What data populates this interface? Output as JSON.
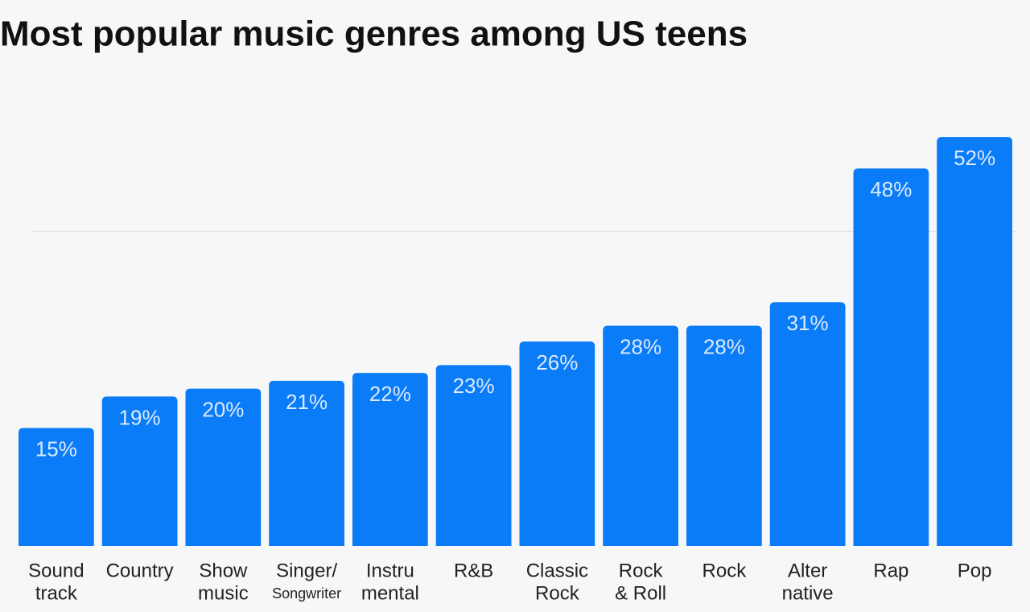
{
  "chart_data": {
    "type": "bar",
    "title": "Most popular music genres among US teens",
    "categories": [
      [
        "Sound",
        "track"
      ],
      [
        "Country"
      ],
      [
        "Show",
        "music"
      ],
      [
        "Singer/",
        "Songwriter"
      ],
      [
        "Instru",
        "mental"
      ],
      [
        "R&B"
      ],
      [
        "Classic",
        "Rock"
      ],
      [
        "Rock",
        "& Roll"
      ],
      [
        "Rock"
      ],
      [
        "Alter",
        "native"
      ],
      [
        "Rap"
      ],
      [
        "Pop"
      ]
    ],
    "values": [
      15,
      19,
      20,
      21,
      22,
      23,
      26,
      28,
      28,
      31,
      48,
      52
    ],
    "value_labels": [
      "15%",
      "19%",
      "20%",
      "21%",
      "22%",
      "23%",
      "26%",
      "28%",
      "28%",
      "31%",
      "48%",
      "52%"
    ],
    "color": "#0a7cf7",
    "ylim": [
      0,
      60
    ],
    "yticks": [
      40
    ],
    "grid": true
  }
}
